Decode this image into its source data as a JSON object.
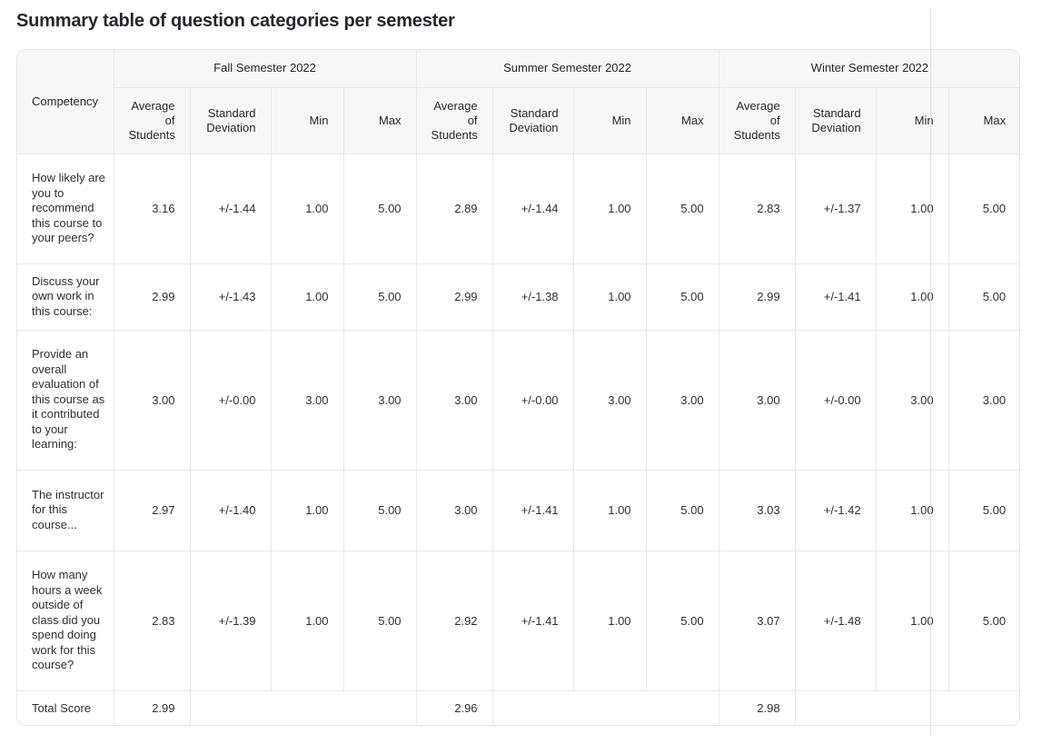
{
  "title": "Summary table of question categories per semester",
  "table": {
    "competency_header": "Competency",
    "semesters": [
      "Fall Semester 2022",
      "Summer Semester 2022",
      "Winter Semester 2022"
    ],
    "metric_headers": {
      "avg": "Average of Students",
      "sd": "Standard Deviation",
      "min": "Min",
      "max": "Max"
    },
    "rows": [
      {
        "competency": "How likely are you to recommend this course to your peers?",
        "values": [
          {
            "avg": "3.16",
            "sd": "+/-1.44",
            "min": "1.00",
            "max": "5.00"
          },
          {
            "avg": "2.89",
            "sd": "+/-1.44",
            "min": "1.00",
            "max": "5.00"
          },
          {
            "avg": "2.83",
            "sd": "+/-1.37",
            "min": "1.00",
            "max": "5.00"
          }
        ]
      },
      {
        "competency": "Discuss your own work in this course:",
        "values": [
          {
            "avg": "2.99",
            "sd": "+/-1.43",
            "min": "1.00",
            "max": "5.00"
          },
          {
            "avg": "2.99",
            "sd": "+/-1.38",
            "min": "1.00",
            "max": "5.00"
          },
          {
            "avg": "2.99",
            "sd": "+/-1.41",
            "min": "1.00",
            "max": "5.00"
          }
        ]
      },
      {
        "competency": "Provide an overall evaluation of this course as it contributed to your learning:",
        "values": [
          {
            "avg": "3.00",
            "sd": "+/-0.00",
            "min": "3.00",
            "max": "3.00"
          },
          {
            "avg": "3.00",
            "sd": "+/-0.00",
            "min": "3.00",
            "max": "3.00"
          },
          {
            "avg": "3.00",
            "sd": "+/-0.00",
            "min": "3.00",
            "max": "3.00"
          }
        ]
      },
      {
        "competency": "The instructor for this course...",
        "values": [
          {
            "avg": "2.97",
            "sd": "+/-1.40",
            "min": "1.00",
            "max": "5.00"
          },
          {
            "avg": "3.00",
            "sd": "+/-1.41",
            "min": "1.00",
            "max": "5.00"
          },
          {
            "avg": "3.03",
            "sd": "+/-1.42",
            "min": "1.00",
            "max": "5.00"
          }
        ]
      },
      {
        "competency": "How many hours a week outside of class did you spend doing work for this course?",
        "values": [
          {
            "avg": "2.83",
            "sd": "+/-1.39",
            "min": "1.00",
            "max": "5.00"
          },
          {
            "avg": "2.92",
            "sd": "+/-1.41",
            "min": "1.00",
            "max": "5.00"
          },
          {
            "avg": "3.07",
            "sd": "+/-1.48",
            "min": "1.00",
            "max": "5.00"
          }
        ]
      }
    ],
    "total": {
      "label": "Total Score",
      "values": [
        "2.99",
        "2.96",
        "2.98"
      ]
    }
  }
}
